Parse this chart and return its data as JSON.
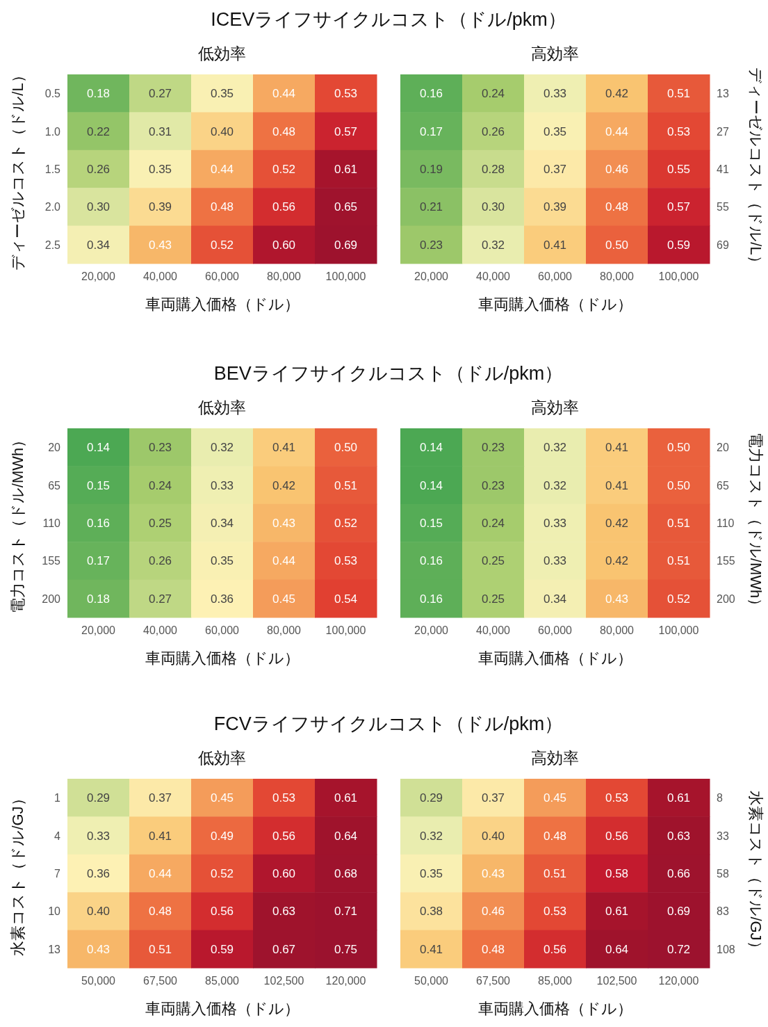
{
  "chart_data": [
    {
      "type": "heatmap",
      "title": "ICEVライフサイクルコスト（ドル/pkm）",
      "subtitle": "低効率",
      "xlabel": "車両購入価格（ドル）",
      "ylabel": "ディーゼルコスト（ドル/L）",
      "categories": [
        "20,000",
        "40,000",
        "60,000",
        "80,000",
        "100,000"
      ],
      "y_categories": [
        "0.5",
        "1.0",
        "1.5",
        "2.0",
        "2.5"
      ],
      "cells": [
        [
          0.18,
          0.27,
          0.35,
          0.44,
          0.53
        ],
        [
          0.22,
          0.31,
          0.4,
          0.48,
          0.57
        ],
        [
          0.26,
          0.35,
          0.44,
          0.52,
          0.61
        ],
        [
          0.3,
          0.39,
          0.48,
          0.56,
          0.65
        ],
        [
          0.34,
          0.43,
          0.52,
          0.6,
          0.69
        ]
      ],
      "cell_labels": [
        [
          "0.18",
          "0.27",
          "0.35",
          "0.44",
          "0.53"
        ],
        [
          "0.22",
          "0.31",
          "0.40",
          "0.48",
          "0.57"
        ],
        [
          "0.26",
          "0.35",
          "0.44",
          "0.52",
          "0.61"
        ],
        [
          "0.30",
          "0.39",
          "0.48",
          "0.56",
          "0.65"
        ],
        [
          "0.34",
          "0.43",
          "0.52",
          "0.60",
          "0.69"
        ]
      ]
    },
    {
      "type": "heatmap",
      "subtitle": "高効率",
      "xlabel": "車両購入価格（ドル）",
      "ylabel": "ディーゼルコスト（ドル/L）",
      "categories": [
        "20,000",
        "40,000",
        "60,000",
        "80,000",
        "100,000"
      ],
      "y_categories": [
        "13",
        "27",
        "41",
        "55",
        "69"
      ],
      "cells": [
        [
          0.16,
          0.24,
          0.33,
          0.42,
          0.51
        ],
        [
          0.17,
          0.26,
          0.35,
          0.44,
          0.53
        ],
        [
          0.19,
          0.28,
          0.37,
          0.46,
          0.55
        ],
        [
          0.21,
          0.3,
          0.39,
          0.48,
          0.57
        ],
        [
          0.23,
          0.32,
          0.41,
          0.5,
          0.59
        ]
      ],
      "cell_labels": [
        [
          "0.16",
          "0.24",
          "0.33",
          "0.42",
          "0.51"
        ],
        [
          "0.17",
          "0.26",
          "0.35",
          "0.44",
          "0.53"
        ],
        [
          "0.19",
          "0.28",
          "0.37",
          "0.46",
          "0.55"
        ],
        [
          "0.21",
          "0.30",
          "0.39",
          "0.48",
          "0.57"
        ],
        [
          "0.23",
          "0.32",
          "0.41",
          "0.50",
          "0.59"
        ]
      ]
    },
    {
      "type": "heatmap",
      "title": "BEVライフサイクルコスト（ドル/pkm）",
      "subtitle": "低効率",
      "xlabel": "車両購入価格（ドル）",
      "ylabel": "電力コスト（ドル/MWh）",
      "categories": [
        "20,000",
        "40,000",
        "60,000",
        "80,000",
        "100,000"
      ],
      "y_categories": [
        "20",
        "65",
        "110",
        "155",
        "200"
      ],
      "cells": [
        [
          0.14,
          0.23,
          0.32,
          0.41,
          0.5
        ],
        [
          0.15,
          0.24,
          0.33,
          0.42,
          0.51
        ],
        [
          0.16,
          0.25,
          0.34,
          0.43,
          0.52
        ],
        [
          0.17,
          0.26,
          0.35,
          0.44,
          0.53
        ],
        [
          0.18,
          0.27,
          0.36,
          0.45,
          0.54
        ]
      ],
      "cell_labels": [
        [
          "0.14",
          "0.23",
          "0.32",
          "0.41",
          "0.50"
        ],
        [
          "0.15",
          "0.24",
          "0.33",
          "0.42",
          "0.51"
        ],
        [
          "0.16",
          "0.25",
          "0.34",
          "0.43",
          "0.52"
        ],
        [
          "0.17",
          "0.26",
          "0.35",
          "0.44",
          "0.53"
        ],
        [
          "0.18",
          "0.27",
          "0.36",
          "0.45",
          "0.54"
        ]
      ]
    },
    {
      "type": "heatmap",
      "subtitle": "高効率",
      "xlabel": "車両購入価格（ドル）",
      "ylabel": "電力コスト（ドル/MWh）",
      "categories": [
        "20,000",
        "40,000",
        "60,000",
        "80,000",
        "100,000"
      ],
      "y_categories": [
        "20",
        "65",
        "110",
        "155",
        "200"
      ],
      "cells": [
        [
          0.14,
          0.23,
          0.32,
          0.41,
          0.5
        ],
        [
          0.14,
          0.23,
          0.32,
          0.41,
          0.5
        ],
        [
          0.15,
          0.24,
          0.33,
          0.42,
          0.51
        ],
        [
          0.16,
          0.25,
          0.33,
          0.42,
          0.51
        ],
        [
          0.16,
          0.25,
          0.34,
          0.43,
          0.52
        ]
      ],
      "cell_labels": [
        [
          "0.14",
          "0.23",
          "0.32",
          "0.41",
          "0.50"
        ],
        [
          "0.14",
          "0.23",
          "0.32",
          "0.41",
          "0.50"
        ],
        [
          "0.15",
          "0.24",
          "0.33",
          "0.42",
          "0.51"
        ],
        [
          "0.16",
          "0.25",
          "0.33",
          "0.42",
          "0.51"
        ],
        [
          "0.16",
          "0.25",
          "0.34",
          "0.43",
          "0.52"
        ]
      ]
    },
    {
      "type": "heatmap",
      "title": "FCVライフサイクルコスト（ドル/pkm）",
      "subtitle": "低効率",
      "xlabel": "車両購入価格（ドル）",
      "ylabel": "水素コスト（ドル/GJ）",
      "categories": [
        "50,000",
        "67,500",
        "85,000",
        "102,500",
        "120,000"
      ],
      "y_categories": [
        "1",
        "4",
        "7",
        "10",
        "13"
      ],
      "cells": [
        [
          0.29,
          0.37,
          0.45,
          0.53,
          0.61
        ],
        [
          0.33,
          0.41,
          0.49,
          0.56,
          0.64
        ],
        [
          0.36,
          0.44,
          0.52,
          0.6,
          0.68
        ],
        [
          0.4,
          0.48,
          0.56,
          0.63,
          0.71
        ],
        [
          0.43,
          0.51,
          0.59,
          0.67,
          0.75
        ]
      ],
      "cell_labels": [
        [
          "0.29",
          "0.37",
          "0.45",
          "0.53",
          "0.61"
        ],
        [
          "0.33",
          "0.41",
          "0.49",
          "0.56",
          "0.64"
        ],
        [
          "0.36",
          "0.44",
          "0.52",
          "0.60",
          "0.68"
        ],
        [
          "0.40",
          "0.48",
          "0.56",
          "0.63",
          "0.71"
        ],
        [
          "0.43",
          "0.51",
          "0.59",
          "0.67",
          "0.75"
        ]
      ]
    },
    {
      "type": "heatmap",
      "subtitle": "高効率",
      "xlabel": "車両購入価格（ドル）",
      "ylabel": "水素コスト（ドル/GJ）",
      "categories": [
        "50,000",
        "67,500",
        "85,000",
        "102,500",
        "120,000"
      ],
      "y_categories": [
        "8",
        "33",
        "58",
        "83",
        "108"
      ],
      "cells": [
        [
          0.29,
          0.37,
          0.45,
          0.53,
          0.61
        ],
        [
          0.32,
          0.4,
          0.48,
          0.56,
          0.63
        ],
        [
          0.35,
          0.43,
          0.51,
          0.58,
          0.66
        ],
        [
          0.38,
          0.46,
          0.53,
          0.61,
          0.69
        ],
        [
          0.41,
          0.48,
          0.56,
          0.64,
          0.72
        ]
      ],
      "cell_labels": [
        [
          "0.29",
          "0.37",
          "0.45",
          "0.53",
          "0.61"
        ],
        [
          "0.32",
          "0.40",
          "0.48",
          "0.56",
          "0.63"
        ],
        [
          "0.35",
          "0.43",
          "0.51",
          "0.58",
          "0.66"
        ],
        [
          "0.38",
          "0.46",
          "0.53",
          "0.61",
          "0.69"
        ],
        [
          "0.41",
          "0.48",
          "0.56",
          "0.64",
          "0.72"
        ]
      ]
    }
  ]
}
